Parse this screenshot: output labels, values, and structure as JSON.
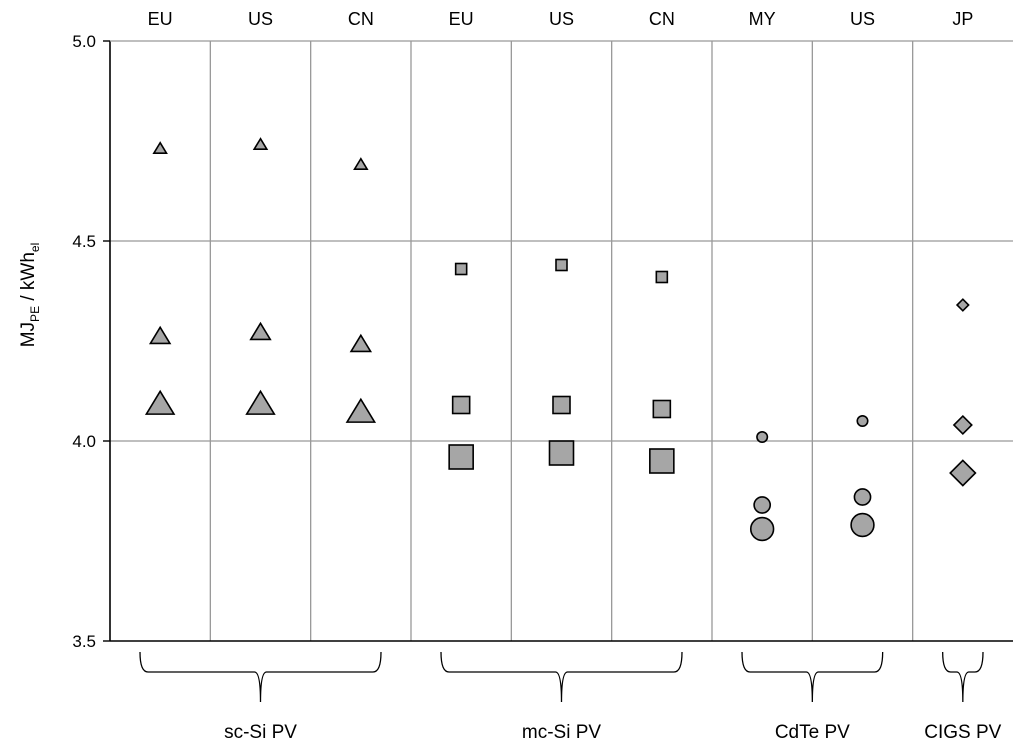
{
  "chart_data": {
    "type": "scatter",
    "ylabel_main": "MJ",
    "ylabel_sub1": "PE",
    "ylabel_mid": " / kWh",
    "ylabel_sub2": "el",
    "ylim": [
      3.5,
      5.0
    ],
    "yticks": [
      "3.5",
      "4.0",
      "4.5",
      "5.0"
    ],
    "grid": true,
    "columns": [
      "EU",
      "US",
      "CN",
      "EU",
      "US",
      "CN",
      "MY",
      "US",
      "JP"
    ],
    "groups": [
      {
        "label": "sc-Si PV",
        "columns": [
          0,
          1,
          2
        ]
      },
      {
        "label": "mc-Si PV",
        "columns": [
          3,
          4,
          5
        ]
      },
      {
        "label": "CdTe PV",
        "columns": [
          6,
          7
        ]
      },
      {
        "label": "CIGS PV",
        "columns": [
          8
        ]
      }
    ],
    "points": [
      {
        "col": 0,
        "marker": "triangle",
        "size": "small",
        "y": 4.73
      },
      {
        "col": 0,
        "marker": "triangle",
        "size": "medium",
        "y": 4.26
      },
      {
        "col": 0,
        "marker": "triangle",
        "size": "large",
        "y": 4.09
      },
      {
        "col": 1,
        "marker": "triangle",
        "size": "small",
        "y": 4.74
      },
      {
        "col": 1,
        "marker": "triangle",
        "size": "medium",
        "y": 4.27
      },
      {
        "col": 1,
        "marker": "triangle",
        "size": "large",
        "y": 4.09
      },
      {
        "col": 2,
        "marker": "triangle",
        "size": "small",
        "y": 4.69
      },
      {
        "col": 2,
        "marker": "triangle",
        "size": "medium",
        "y": 4.24
      },
      {
        "col": 2,
        "marker": "triangle",
        "size": "large",
        "y": 4.07
      },
      {
        "col": 3,
        "marker": "square",
        "size": "small",
        "y": 4.43
      },
      {
        "col": 3,
        "marker": "square",
        "size": "medium",
        "y": 4.09
      },
      {
        "col": 3,
        "marker": "square",
        "size": "large",
        "y": 3.96
      },
      {
        "col": 4,
        "marker": "square",
        "size": "small",
        "y": 4.44
      },
      {
        "col": 4,
        "marker": "square",
        "size": "medium",
        "y": 4.09
      },
      {
        "col": 4,
        "marker": "square",
        "size": "large",
        "y": 3.97
      },
      {
        "col": 5,
        "marker": "square",
        "size": "small",
        "y": 4.41
      },
      {
        "col": 5,
        "marker": "square",
        "size": "medium",
        "y": 4.08
      },
      {
        "col": 5,
        "marker": "square",
        "size": "large",
        "y": 3.95
      },
      {
        "col": 6,
        "marker": "circle",
        "size": "small",
        "y": 4.01
      },
      {
        "col": 6,
        "marker": "circle",
        "size": "medium",
        "y": 3.84
      },
      {
        "col": 6,
        "marker": "circle",
        "size": "large",
        "y": 3.78
      },
      {
        "col": 7,
        "marker": "circle",
        "size": "small",
        "y": 4.05
      },
      {
        "col": 7,
        "marker": "circle",
        "size": "medium",
        "y": 3.86
      },
      {
        "col": 7,
        "marker": "circle",
        "size": "large",
        "y": 3.79
      },
      {
        "col": 8,
        "marker": "diamond",
        "size": "small",
        "y": 4.34
      },
      {
        "col": 8,
        "marker": "diamond",
        "size": "medium",
        "y": 4.04
      },
      {
        "col": 8,
        "marker": "diamond",
        "size": "large",
        "y": 3.92
      }
    ],
    "colors": {
      "marker_fill": "#a6a6a6",
      "marker_stroke": "#000000",
      "grid": "#999999",
      "axis": "#000000"
    }
  }
}
